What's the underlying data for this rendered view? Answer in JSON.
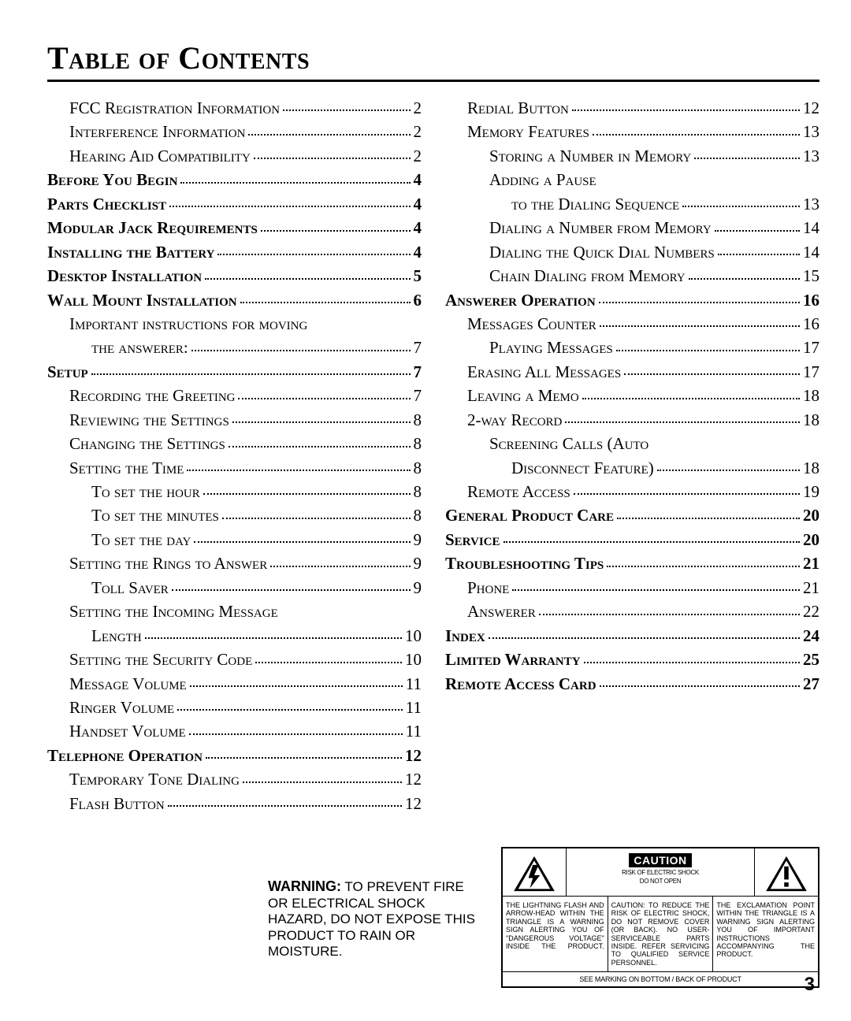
{
  "title": "Table of Contents",
  "page_number": "3",
  "left_entries": [
    {
      "label": "FCC Registration Information",
      "page": "2",
      "bold": false,
      "indent": 1
    },
    {
      "label": "Interference Information",
      "page": "2",
      "bold": false,
      "indent": 1
    },
    {
      "label": "Hearing Aid Compatibility",
      "page": "2",
      "bold": false,
      "indent": 1
    },
    {
      "label": "Before You Begin",
      "page": "4",
      "bold": true,
      "indent": 0
    },
    {
      "label": "Parts Checklist",
      "page": "4",
      "bold": true,
      "indent": 0
    },
    {
      "label": "Modular Jack Requirements",
      "page": "4",
      "bold": true,
      "indent": 0
    },
    {
      "label": "Installing the Battery",
      "page": "4",
      "bold": true,
      "indent": 0
    },
    {
      "label": "Desktop Installation",
      "page": "5",
      "bold": true,
      "indent": 0
    },
    {
      "label": "Wall Mount Installation",
      "page": "6",
      "bold": true,
      "indent": 0
    },
    {
      "label": "Important instructions for moving",
      "page": "",
      "bold": false,
      "indent": 1,
      "nodots": true
    },
    {
      "label": "the answerer:",
      "page": "7",
      "bold": false,
      "indent": 2
    },
    {
      "label": "Setup",
      "page": "7",
      "bold": true,
      "indent": 0
    },
    {
      "label": "Recording the Greeting",
      "page": "7",
      "bold": false,
      "indent": 1
    },
    {
      "label": "Reviewing the Settings",
      "page": "8",
      "bold": false,
      "indent": 1
    },
    {
      "label": "Changing the Settings",
      "page": "8",
      "bold": false,
      "indent": 1
    },
    {
      "label": "Setting the Time",
      "page": "8",
      "bold": false,
      "indent": 1
    },
    {
      "label": "To set the hour",
      "page": "8",
      "bold": false,
      "indent": 2
    },
    {
      "label": "To set the minutes",
      "page": "8",
      "bold": false,
      "indent": 2
    },
    {
      "label": "To set the day",
      "page": "9",
      "bold": false,
      "indent": 2
    },
    {
      "label": "Setting the Rings to Answer",
      "page": "9",
      "bold": false,
      "indent": 1
    },
    {
      "label": "Toll Saver",
      "page": "9",
      "bold": false,
      "indent": 2
    },
    {
      "label": "Setting the Incoming Message",
      "page": "",
      "bold": false,
      "indent": 1,
      "nodots": true
    },
    {
      "label": "Length",
      "page": "10",
      "bold": false,
      "indent": 2
    },
    {
      "label": "Setting the Security Code",
      "page": "10",
      "bold": false,
      "indent": 1
    },
    {
      "label": "Message Volume",
      "page": "11",
      "bold": false,
      "indent": 1
    },
    {
      "label": "Ringer Volume",
      "page": "11",
      "bold": false,
      "indent": 1
    },
    {
      "label": "Handset Volume",
      "page": "11",
      "bold": false,
      "indent": 1
    },
    {
      "label": "Telephone Operation",
      "page": "12",
      "bold": true,
      "indent": 0
    },
    {
      "label": "Temporary Tone Dialing",
      "page": "12",
      "bold": false,
      "indent": 1
    },
    {
      "label": "Flash Button",
      "page": "12",
      "bold": false,
      "indent": 1
    }
  ],
  "right_entries": [
    {
      "label": "Redial Button",
      "page": "12",
      "bold": false,
      "indent": 1
    },
    {
      "label": "Memory Features",
      "page": "13",
      "bold": false,
      "indent": 1
    },
    {
      "label": "Storing a Number in Memory",
      "page": "13",
      "bold": false,
      "indent": 2
    },
    {
      "label": "Adding a Pause",
      "page": "",
      "bold": false,
      "indent": 2,
      "nodots": true
    },
    {
      "label": "to the Dialing Sequence",
      "page": "13",
      "bold": false,
      "indent": 3
    },
    {
      "label": "Dialing a Number from Memory",
      "page": "14",
      "bold": false,
      "indent": 2
    },
    {
      "label": "Dialing the Quick Dial Numbers",
      "page": "14",
      "bold": false,
      "indent": 2
    },
    {
      "label": "Chain Dialing from Memory",
      "page": "15",
      "bold": false,
      "indent": 2
    },
    {
      "label": "Answerer Operation",
      "page": "16",
      "bold": true,
      "indent": 0
    },
    {
      "label": "Messages Counter",
      "page": "16",
      "bold": false,
      "indent": 1
    },
    {
      "label": "Playing Messages",
      "page": "17",
      "bold": false,
      "indent": 2
    },
    {
      "label": "Erasing All Messages",
      "page": "17",
      "bold": false,
      "indent": 1
    },
    {
      "label": "Leaving a Memo",
      "page": "18",
      "bold": false,
      "indent": 1
    },
    {
      "label": "2-way Record",
      "page": "18",
      "bold": false,
      "indent": 1
    },
    {
      "label": "Screening Calls (Auto",
      "page": "",
      "bold": false,
      "indent": 2,
      "nodots": true
    },
    {
      "label": "Disconnect Feature)",
      "page": "18",
      "bold": false,
      "indent": 3
    },
    {
      "label": "Remote Access",
      "page": "19",
      "bold": false,
      "indent": 1
    },
    {
      "label": "General Product Care",
      "page": "20",
      "bold": true,
      "indent": 0
    },
    {
      "label": "Service",
      "page": "20",
      "bold": true,
      "indent": 0
    },
    {
      "label": "Troubleshooting Tips",
      "page": "21",
      "bold": true,
      "indent": 0
    },
    {
      "label": "Phone",
      "page": "21",
      "bold": false,
      "indent": 1
    },
    {
      "label": "Answerer",
      "page": "22",
      "bold": false,
      "indent": 1
    },
    {
      "label": "Index",
      "page": "24",
      "bold": true,
      "indent": 0
    },
    {
      "label": "Limited Warranty",
      "page": "25",
      "bold": true,
      "indent": 0
    },
    {
      "label": "Remote Access Card",
      "page": "27",
      "bold": true,
      "indent": 0
    }
  ],
  "warning_label": "WARNING:",
  "warning_text": " TO PREVENT FIRE OR ELECTRICAL SHOCK HAZARD, DO NOT EXPOSE THIS PRODUCT TO RAIN OR MOISTURE.",
  "caution_badge": "CAUTION",
  "caution_sub1": "RISK OF ELECTRIC SHOCK",
  "caution_sub2": "DO NOT OPEN",
  "caution_left_text": "THE LIGHTNING FLASH AND ARROW-HEAD WITHIN THE TRIANGLE IS A WARNING SIGN ALERTING YOU OF \"DANGEROUS VOLTAGE\" INSIDE THE PRODUCT.",
  "caution_mid_text": "CAUTION: TO REDUCE THE RISK OF ELECTRIC SHOCK, DO NOT REMOVE COVER (OR BACK). NO USER-SERVICEABLE PARTS INSIDE. REFER SERVICING TO QUALIFIED SERVICE PERSONNEL.",
  "caution_right_text": "THE EXCLAMATION POINT WITHIN THE TRIANGLE IS A WARNING SIGN ALERTING YOU OF IMPORTANT INSTRUCTIONS ACCOMPANYING THE PRODUCT.",
  "caution_bottom": "SEE MARKING ON BOTTOM / BACK OF PRODUCT"
}
